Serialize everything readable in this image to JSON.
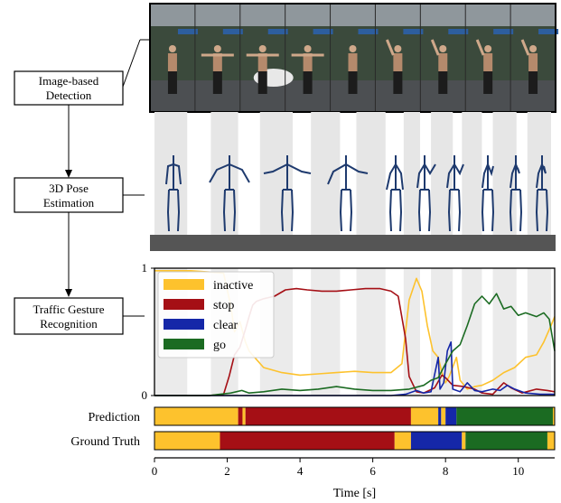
{
  "pipeline": {
    "steps": [
      "Image-based\nDetection",
      "3D Pose\nEstimation",
      "Traffic Gesture\nRecognition"
    ]
  },
  "photo_strip": {
    "frames": 9,
    "colors": {
      "sky": "#8f979c",
      "trees": "#3b4a3c",
      "road": "#4c4f52",
      "person": "#cfa88a",
      "sign": "#2d5e9e",
      "car": "#e8e8e8"
    }
  },
  "pose_strip": {
    "frames": 9,
    "colors": {
      "skeleton": "#1e3a6e",
      "ground": "#555555",
      "band": "#e6e6e6"
    }
  },
  "chart_data": {
    "type": "line",
    "xlabel": "Time [s]",
    "xlim": [
      0,
      11
    ],
    "ylim": [
      0,
      1
    ],
    "x_ticks": [
      "0",
      "2",
      "4",
      "6",
      "8",
      "10"
    ],
    "y_ticks": [
      "0",
      "1"
    ],
    "series": [
      {
        "name": "inactive",
        "color": "#fdc22d",
        "points": [
          [
            0.0,
            0.98
          ],
          [
            0.4,
            0.98
          ],
          [
            1.0,
            0.98
          ],
          [
            1.5,
            0.97
          ],
          [
            1.9,
            0.96
          ],
          [
            2.1,
            0.7
          ],
          [
            2.2,
            0.5
          ],
          [
            2.35,
            0.58
          ],
          [
            2.5,
            0.42
          ],
          [
            2.6,
            0.35
          ],
          [
            2.75,
            0.3
          ],
          [
            3.0,
            0.22
          ],
          [
            3.5,
            0.18
          ],
          [
            4.0,
            0.16
          ],
          [
            4.5,
            0.17
          ],
          [
            5.0,
            0.18
          ],
          [
            5.5,
            0.19
          ],
          [
            6.0,
            0.18
          ],
          [
            6.5,
            0.18
          ],
          [
            6.8,
            0.25
          ],
          [
            7.0,
            0.75
          ],
          [
            7.2,
            0.92
          ],
          [
            7.35,
            0.82
          ],
          [
            7.5,
            0.55
          ],
          [
            7.65,
            0.35
          ],
          [
            7.8,
            0.3
          ],
          [
            7.9,
            0.18
          ],
          [
            8.0,
            0.1
          ],
          [
            8.1,
            0.15
          ],
          [
            8.3,
            0.3
          ],
          [
            8.4,
            0.12
          ],
          [
            8.6,
            0.05
          ],
          [
            8.8,
            0.07
          ],
          [
            9.0,
            0.08
          ],
          [
            9.3,
            0.12
          ],
          [
            9.6,
            0.18
          ],
          [
            9.9,
            0.22
          ],
          [
            10.2,
            0.3
          ],
          [
            10.5,
            0.32
          ],
          [
            10.7,
            0.42
          ],
          [
            10.9,
            0.55
          ],
          [
            11.0,
            0.62
          ]
        ]
      },
      {
        "name": "stop",
        "color": "#a50f15",
        "points": [
          [
            0.0,
            0.0
          ],
          [
            1.5,
            0.0
          ],
          [
            1.9,
            0.01
          ],
          [
            2.05,
            0.15
          ],
          [
            2.2,
            0.32
          ],
          [
            2.35,
            0.38
          ],
          [
            2.5,
            0.52
          ],
          [
            2.6,
            0.62
          ],
          [
            2.7,
            0.71
          ],
          [
            2.8,
            0.74
          ],
          [
            3.0,
            0.76
          ],
          [
            3.3,
            0.78
          ],
          [
            3.6,
            0.83
          ],
          [
            3.9,
            0.84
          ],
          [
            4.2,
            0.83
          ],
          [
            4.6,
            0.82
          ],
          [
            5.0,
            0.82
          ],
          [
            5.4,
            0.83
          ],
          [
            5.8,
            0.84
          ],
          [
            6.2,
            0.84
          ],
          [
            6.5,
            0.82
          ],
          [
            6.7,
            0.78
          ],
          [
            6.9,
            0.45
          ],
          [
            7.0,
            0.15
          ],
          [
            7.2,
            0.03
          ],
          [
            7.4,
            0.02
          ],
          [
            7.7,
            0.06
          ],
          [
            7.9,
            0.16
          ],
          [
            8.0,
            0.14
          ],
          [
            8.2,
            0.08
          ],
          [
            8.5,
            0.07
          ],
          [
            8.8,
            0.05
          ],
          [
            9.0,
            0.02
          ],
          [
            9.3,
            0.01
          ],
          [
            9.6,
            0.1
          ],
          [
            9.8,
            0.06
          ],
          [
            10.1,
            0.02
          ],
          [
            10.5,
            0.05
          ],
          [
            10.8,
            0.04
          ],
          [
            11.0,
            0.03
          ]
        ]
      },
      {
        "name": "clear",
        "color": "#1527a8",
        "points": [
          [
            0.0,
            0.0
          ],
          [
            6.5,
            0.0
          ],
          [
            6.9,
            0.01
          ],
          [
            7.0,
            0.02
          ],
          [
            7.2,
            0.04
          ],
          [
            7.4,
            0.02
          ],
          [
            7.6,
            0.03
          ],
          [
            7.8,
            0.3
          ],
          [
            7.85,
            0.05
          ],
          [
            7.95,
            0.1
          ],
          [
            8.05,
            0.35
          ],
          [
            8.15,
            0.42
          ],
          [
            8.2,
            0.05
          ],
          [
            8.4,
            0.03
          ],
          [
            8.6,
            0.1
          ],
          [
            8.8,
            0.04
          ],
          [
            9.0,
            0.03
          ],
          [
            9.3,
            0.05
          ],
          [
            9.5,
            0.04
          ],
          [
            9.7,
            0.08
          ],
          [
            9.9,
            0.05
          ],
          [
            10.2,
            0.02
          ],
          [
            10.6,
            0.01
          ],
          [
            11.0,
            0.01
          ]
        ]
      },
      {
        "name": "go",
        "color": "#1b6b22",
        "points": [
          [
            0.0,
            0.0
          ],
          [
            1.5,
            0.0
          ],
          [
            1.8,
            0.01
          ],
          [
            2.1,
            0.02
          ],
          [
            2.4,
            0.04
          ],
          [
            2.6,
            0.02
          ],
          [
            3.0,
            0.03
          ],
          [
            3.5,
            0.05
          ],
          [
            4.0,
            0.04
          ],
          [
            4.5,
            0.05
          ],
          [
            5.0,
            0.07
          ],
          [
            5.5,
            0.05
          ],
          [
            6.0,
            0.04
          ],
          [
            6.5,
            0.04
          ],
          [
            7.0,
            0.05
          ],
          [
            7.4,
            0.08
          ],
          [
            7.6,
            0.12
          ],
          [
            7.8,
            0.14
          ],
          [
            8.0,
            0.25
          ],
          [
            8.2,
            0.35
          ],
          [
            8.4,
            0.4
          ],
          [
            8.6,
            0.55
          ],
          [
            8.8,
            0.72
          ],
          [
            9.0,
            0.78
          ],
          [
            9.2,
            0.72
          ],
          [
            9.4,
            0.8
          ],
          [
            9.6,
            0.68
          ],
          [
            9.8,
            0.7
          ],
          [
            10.0,
            0.63
          ],
          [
            10.2,
            0.65
          ],
          [
            10.5,
            0.62
          ],
          [
            10.7,
            0.65
          ],
          [
            10.85,
            0.6
          ],
          [
            11.0,
            0.35
          ]
        ]
      }
    ],
    "legend": {
      "placement": "top-left",
      "entries": [
        "inactive",
        "stop",
        "clear",
        "go"
      ]
    },
    "timeline_rows": [
      {
        "label": "Prediction",
        "segments": [
          [
            0.0,
            2.3,
            "inactive"
          ],
          [
            2.3,
            2.42,
            "stop"
          ],
          [
            2.42,
            2.5,
            "inactive"
          ],
          [
            2.5,
            7.05,
            "stop"
          ],
          [
            7.05,
            7.8,
            "inactive"
          ],
          [
            7.8,
            7.88,
            "clear"
          ],
          [
            7.88,
            8.0,
            "inactive"
          ],
          [
            8.0,
            8.3,
            "clear"
          ],
          [
            8.3,
            10.95,
            "go"
          ],
          [
            10.95,
            11.0,
            "inactive"
          ]
        ]
      },
      {
        "label": "Ground Truth",
        "segments": [
          [
            0.0,
            1.8,
            "inactive"
          ],
          [
            1.8,
            6.6,
            "stop"
          ],
          [
            6.6,
            7.05,
            "inactive"
          ],
          [
            7.05,
            8.45,
            "clear"
          ],
          [
            8.45,
            8.55,
            "inactive"
          ],
          [
            8.55,
            10.8,
            "go"
          ],
          [
            10.8,
            11.0,
            "inactive"
          ]
        ]
      }
    ],
    "band_intervals": [
      [
        0.0,
        0.9
      ],
      [
        1.55,
        2.3
      ],
      [
        2.9,
        3.8
      ],
      [
        4.3,
        5.1
      ],
      [
        5.55,
        6.35
      ],
      [
        6.85,
        7.3
      ],
      [
        7.6,
        8.2
      ],
      [
        8.45,
        9.0
      ],
      [
        9.3,
        9.95
      ],
      [
        10.25,
        10.9
      ]
    ]
  }
}
